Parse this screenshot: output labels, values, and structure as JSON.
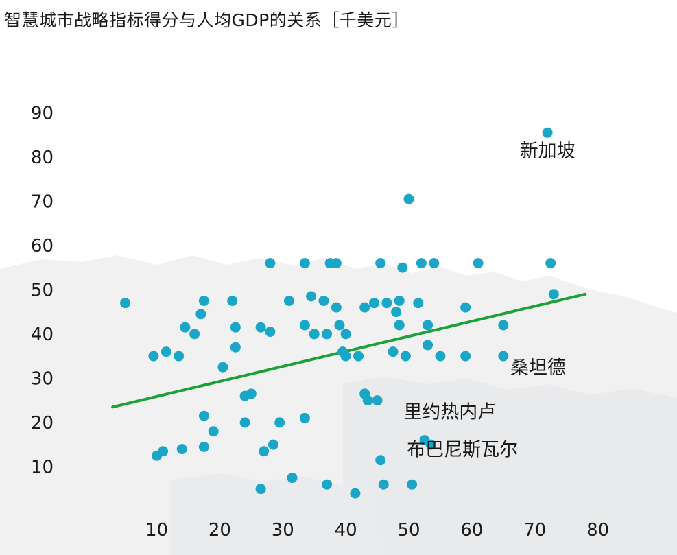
{
  "chart_data": {
    "type": "scatter",
    "title": "智慧城市战略指标得分与人均GDP的关系［千美元］",
    "xlabel": "",
    "ylabel": "",
    "xlim": [
      2,
      82
    ],
    "ylim": [
      2,
      95
    ],
    "x_ticks": [
      10,
      20,
      30,
      40,
      50,
      60,
      70,
      80
    ],
    "y_ticks": [
      10,
      20,
      30,
      40,
      50,
      60,
      70,
      80,
      90
    ],
    "grid": false,
    "point_color": "#1aa6c6",
    "trend_color": "#1aa137",
    "trendline": {
      "x": [
        3,
        78
      ],
      "y": [
        23.5,
        49
      ]
    },
    "points": [
      {
        "x": 5,
        "y": 47
      },
      {
        "x": 9.5,
        "y": 35
      },
      {
        "x": 10,
        "y": 12.5
      },
      {
        "x": 11,
        "y": 13.5
      },
      {
        "x": 11.5,
        "y": 36
      },
      {
        "x": 13.5,
        "y": 35
      },
      {
        "x": 14,
        "y": 14
      },
      {
        "x": 14.5,
        "y": 41.5
      },
      {
        "x": 16,
        "y": 40
      },
      {
        "x": 17,
        "y": 44.5
      },
      {
        "x": 17.5,
        "y": 21.5
      },
      {
        "x": 17.5,
        "y": 14.5
      },
      {
        "x": 17.5,
        "y": 47.5
      },
      {
        "x": 19,
        "y": 18
      },
      {
        "x": 20.5,
        "y": 32.5
      },
      {
        "x": 22,
        "y": 47.5
      },
      {
        "x": 22.5,
        "y": 41.5
      },
      {
        "x": 22.5,
        "y": 37
      },
      {
        "x": 24,
        "y": 26
      },
      {
        "x": 24,
        "y": 20
      },
      {
        "x": 25,
        "y": 26.5
      },
      {
        "x": 26.5,
        "y": 41.5
      },
      {
        "x": 26.5,
        "y": 5
      },
      {
        "x": 27,
        "y": 13.5
      },
      {
        "x": 28,
        "y": 56
      },
      {
        "x": 28,
        "y": 40.5
      },
      {
        "x": 28.5,
        "y": 15
      },
      {
        "x": 29.5,
        "y": 20
      },
      {
        "x": 31,
        "y": 47.5
      },
      {
        "x": 31.5,
        "y": 7.5
      },
      {
        "x": 33.5,
        "y": 56
      },
      {
        "x": 33.5,
        "y": 42
      },
      {
        "x": 33.5,
        "y": 21
      },
      {
        "x": 34.5,
        "y": 48.5
      },
      {
        "x": 35,
        "y": 40
      },
      {
        "x": 36.5,
        "y": 47.5
      },
      {
        "x": 37,
        "y": 6
      },
      {
        "x": 37,
        "y": 40
      },
      {
        "x": 37.5,
        "y": 56
      },
      {
        "x": 38.5,
        "y": 56
      },
      {
        "x": 38.5,
        "y": 46
      },
      {
        "x": 39,
        "y": 42
      },
      {
        "x": 39.5,
        "y": 36
      },
      {
        "x": 40,
        "y": 35
      },
      {
        "x": 40,
        "y": 40
      },
      {
        "x": 41.5,
        "y": 4
      },
      {
        "x": 42,
        "y": 35
      },
      {
        "x": 43,
        "y": 46
      },
      {
        "x": 43,
        "y": 26.5
      },
      {
        "x": 43.5,
        "y": 25
      },
      {
        "x": 44.5,
        "y": 47
      },
      {
        "x": 45,
        "y": 25
      },
      {
        "x": 45.5,
        "y": 11.5
      },
      {
        "x": 45.5,
        "y": 56
      },
      {
        "x": 46,
        "y": 6
      },
      {
        "x": 46.5,
        "y": 47
      },
      {
        "x": 47.5,
        "y": 36
      },
      {
        "x": 48,
        "y": 45
      },
      {
        "x": 48.5,
        "y": 47.5
      },
      {
        "x": 48.5,
        "y": 42
      },
      {
        "x": 49,
        "y": 55
      },
      {
        "x": 49.5,
        "y": 35
      },
      {
        "x": 50,
        "y": 70.5
      },
      {
        "x": 50.5,
        "y": 6
      },
      {
        "x": 51.5,
        "y": 47
      },
      {
        "x": 52,
        "y": 56
      },
      {
        "x": 52.5,
        "y": 16
      },
      {
        "x": 53,
        "y": 42
      },
      {
        "x": 53,
        "y": 37.5
      },
      {
        "x": 53.5,
        "y": 15
      },
      {
        "x": 54,
        "y": 56
      },
      {
        "x": 55,
        "y": 35
      },
      {
        "x": 59,
        "y": 46
      },
      {
        "x": 59,
        "y": 35
      },
      {
        "x": 61,
        "y": 56
      },
      {
        "x": 65,
        "y": 42
      },
      {
        "x": 65,
        "y": 35
      },
      {
        "x": 72,
        "y": 85.5
      },
      {
        "x": 72.5,
        "y": 56
      },
      {
        "x": 73,
        "y": 49
      }
    ],
    "annotations": [
      {
        "text": "新加坡",
        "x": 72,
        "y": 80
      },
      {
        "text": "桑坦德",
        "x": 70.5,
        "y": 31
      },
      {
        "text": "里约热内卢",
        "x": 56.5,
        "y": 21
      },
      {
        "text": "布巴尼斯瓦尔",
        "x": 58.5,
        "y": 12.5
      }
    ]
  }
}
